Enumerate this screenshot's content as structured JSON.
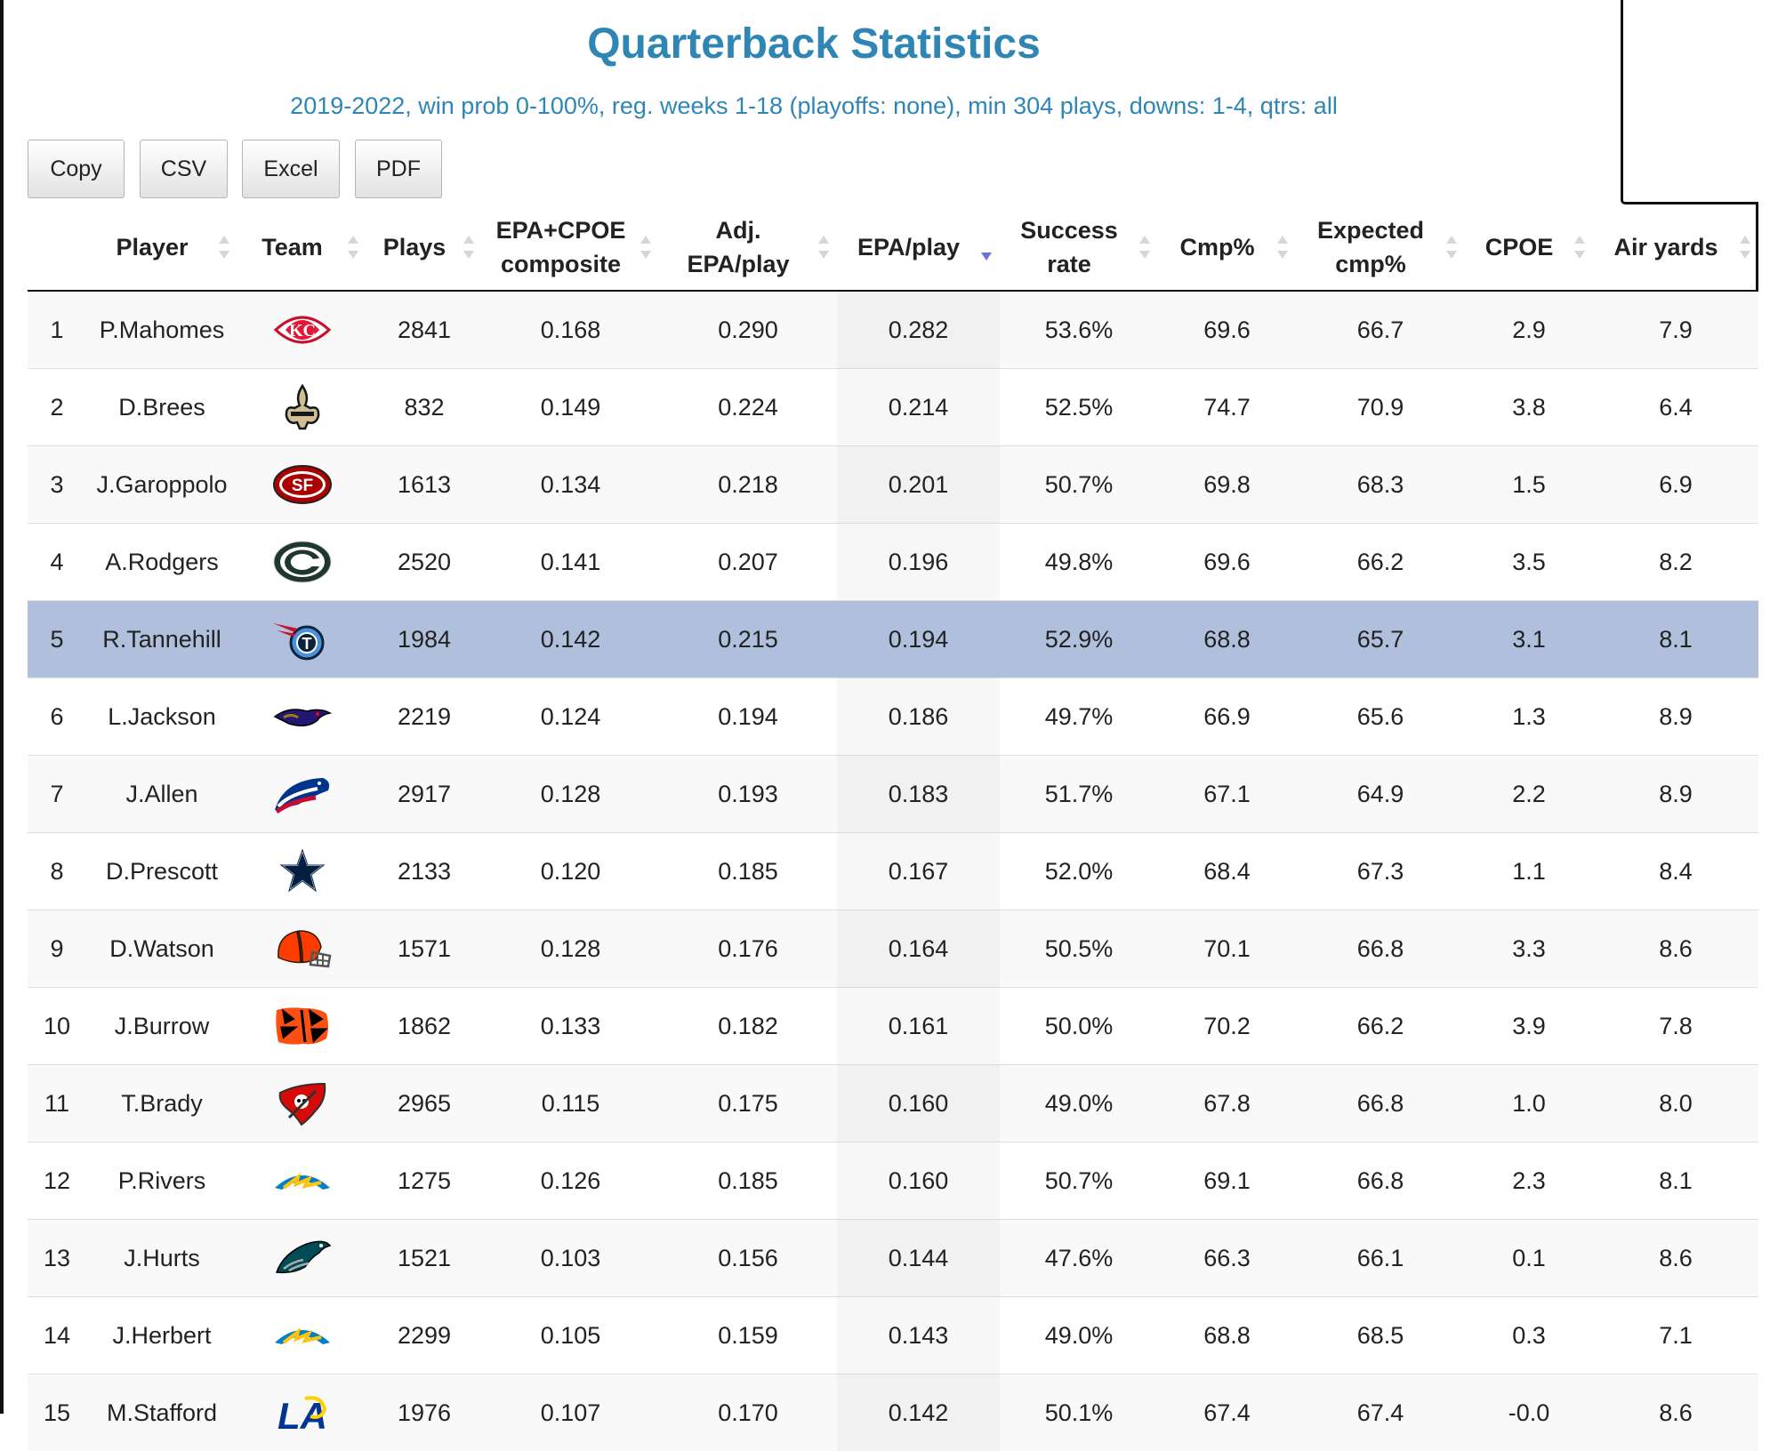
{
  "title": "Quarterback Statistics",
  "subtitle": "2019-2022, win prob 0-100%, reg. weeks 1-18 (playoffs: none), min 304 plays, downs: 1-4, qtrs: all",
  "buttons": [
    "Copy",
    "CSV",
    "Excel",
    "PDF"
  ],
  "columns": [
    {
      "label": "",
      "sortable": false
    },
    {
      "label": "Player",
      "sortable": true
    },
    {
      "label": "Team",
      "sortable": true
    },
    {
      "label": "Plays",
      "sortable": true
    },
    {
      "label": "EPA+CPOE composite",
      "sortable": true
    },
    {
      "label": "Adj. EPA/play",
      "sortable": true
    },
    {
      "label": "EPA/play",
      "sortable": true,
      "sorted": "desc"
    },
    {
      "label": "Success rate",
      "sortable": true
    },
    {
      "label": "Cmp%",
      "sortable": true
    },
    {
      "label": "Expected cmp%",
      "sortable": true
    },
    {
      "label": "CPOE",
      "sortable": true
    },
    {
      "label": "Air yards",
      "sortable": true
    }
  ],
  "highlighted_row": 5,
  "rows": [
    {
      "rank": "1",
      "player": "P.Mahomes",
      "team_logo": "chiefs-logo",
      "plays": "2841",
      "composite": "0.168",
      "adj_epa": "0.290",
      "epa": "0.282",
      "success": "53.6%",
      "cmp": "69.6",
      "xcmp": "66.7",
      "cpoe": "2.9",
      "air": "7.9"
    },
    {
      "rank": "2",
      "player": "D.Brees",
      "team_logo": "saints-logo",
      "plays": "832",
      "composite": "0.149",
      "adj_epa": "0.224",
      "epa": "0.214",
      "success": "52.5%",
      "cmp": "74.7",
      "xcmp": "70.9",
      "cpoe": "3.8",
      "air": "6.4"
    },
    {
      "rank": "3",
      "player": "J.Garoppolo",
      "team_logo": "49ers-logo",
      "plays": "1613",
      "composite": "0.134",
      "adj_epa": "0.218",
      "epa": "0.201",
      "success": "50.7%",
      "cmp": "69.8",
      "xcmp": "68.3",
      "cpoe": "1.5",
      "air": "6.9"
    },
    {
      "rank": "4",
      "player": "A.Rodgers",
      "team_logo": "packers-logo",
      "plays": "2520",
      "composite": "0.141",
      "adj_epa": "0.207",
      "epa": "0.196",
      "success": "49.8%",
      "cmp": "69.6",
      "xcmp": "66.2",
      "cpoe": "3.5",
      "air": "8.2"
    },
    {
      "rank": "5",
      "player": "R.Tannehill",
      "team_logo": "titans-logo",
      "plays": "1984",
      "composite": "0.142",
      "adj_epa": "0.215",
      "epa": "0.194",
      "success": "52.9%",
      "cmp": "68.8",
      "xcmp": "65.7",
      "cpoe": "3.1",
      "air": "8.1"
    },
    {
      "rank": "6",
      "player": "L.Jackson",
      "team_logo": "ravens-logo",
      "plays": "2219",
      "composite": "0.124",
      "adj_epa": "0.194",
      "epa": "0.186",
      "success": "49.7%",
      "cmp": "66.9",
      "xcmp": "65.6",
      "cpoe": "1.3",
      "air": "8.9"
    },
    {
      "rank": "7",
      "player": "J.Allen",
      "team_logo": "bills-logo",
      "plays": "2917",
      "composite": "0.128",
      "adj_epa": "0.193",
      "epa": "0.183",
      "success": "51.7%",
      "cmp": "67.1",
      "xcmp": "64.9",
      "cpoe": "2.2",
      "air": "8.9"
    },
    {
      "rank": "8",
      "player": "D.Prescott",
      "team_logo": "cowboys-logo",
      "plays": "2133",
      "composite": "0.120",
      "adj_epa": "0.185",
      "epa": "0.167",
      "success": "52.0%",
      "cmp": "68.4",
      "xcmp": "67.3",
      "cpoe": "1.1",
      "air": "8.4"
    },
    {
      "rank": "9",
      "player": "D.Watson",
      "team_logo": "browns-logo",
      "plays": "1571",
      "composite": "0.128",
      "adj_epa": "0.176",
      "epa": "0.164",
      "success": "50.5%",
      "cmp": "70.1",
      "xcmp": "66.8",
      "cpoe": "3.3",
      "air": "8.6"
    },
    {
      "rank": "10",
      "player": "J.Burrow",
      "team_logo": "bengals-logo",
      "plays": "1862",
      "composite": "0.133",
      "adj_epa": "0.182",
      "epa": "0.161",
      "success": "50.0%",
      "cmp": "70.2",
      "xcmp": "66.2",
      "cpoe": "3.9",
      "air": "7.8"
    },
    {
      "rank": "11",
      "player": "T.Brady",
      "team_logo": "buccaneers-logo",
      "plays": "2965",
      "composite": "0.115",
      "adj_epa": "0.175",
      "epa": "0.160",
      "success": "49.0%",
      "cmp": "67.8",
      "xcmp": "66.8",
      "cpoe": "1.0",
      "air": "8.0"
    },
    {
      "rank": "12",
      "player": "P.Rivers",
      "team_logo": "chargers-logo",
      "plays": "1275",
      "composite": "0.126",
      "adj_epa": "0.185",
      "epa": "0.160",
      "success": "50.7%",
      "cmp": "69.1",
      "xcmp": "66.8",
      "cpoe": "2.3",
      "air": "8.1"
    },
    {
      "rank": "13",
      "player": "J.Hurts",
      "team_logo": "eagles-logo",
      "plays": "1521",
      "composite": "0.103",
      "adj_epa": "0.156",
      "epa": "0.144",
      "success": "47.6%",
      "cmp": "66.3",
      "xcmp": "66.1",
      "cpoe": "0.1",
      "air": "8.6"
    },
    {
      "rank": "14",
      "player": "J.Herbert",
      "team_logo": "chargers-logo",
      "plays": "2299",
      "composite": "0.105",
      "adj_epa": "0.159",
      "epa": "0.143",
      "success": "49.0%",
      "cmp": "68.8",
      "xcmp": "68.5",
      "cpoe": "0.3",
      "air": "7.1"
    },
    {
      "rank": "15",
      "player": "M.Stafford",
      "team_logo": "rams-logo",
      "plays": "1976",
      "composite": "0.107",
      "adj_epa": "0.170",
      "epa": "0.142",
      "success": "50.1%",
      "cmp": "67.4",
      "xcmp": "67.4",
      "cpoe": "-0.0",
      "air": "8.6"
    }
  ]
}
